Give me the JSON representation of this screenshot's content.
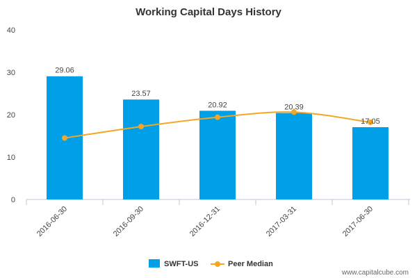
{
  "chart_data": {
    "type": "bar",
    "title": "Working Capital Days History",
    "categories": [
      "2016-06-30",
      "2016-09-30",
      "2016-12-31",
      "2017-03-31",
      "2017-06-30"
    ],
    "series": [
      {
        "name": "SWFT-US",
        "type": "bar",
        "color": "#00a0e9",
        "values": [
          29.06,
          23.57,
          20.92,
          20.39,
          17.05
        ]
      },
      {
        "name": "Peer Median",
        "type": "line",
        "color": "#f5a623",
        "values": [
          14.5,
          17.2,
          19.4,
          20.6,
          18.2
        ]
      }
    ],
    "data_labels": [
      "29.06",
      "23.57",
      "20.92",
      "20.39",
      "17.05"
    ],
    "ylim": [
      0,
      40
    ],
    "yticks": [
      0,
      10,
      20,
      30,
      40
    ],
    "grid": false,
    "legend_position": "bottom-center",
    "xlabel": "",
    "ylabel": ""
  },
  "credit": "www.capitalcube.com"
}
